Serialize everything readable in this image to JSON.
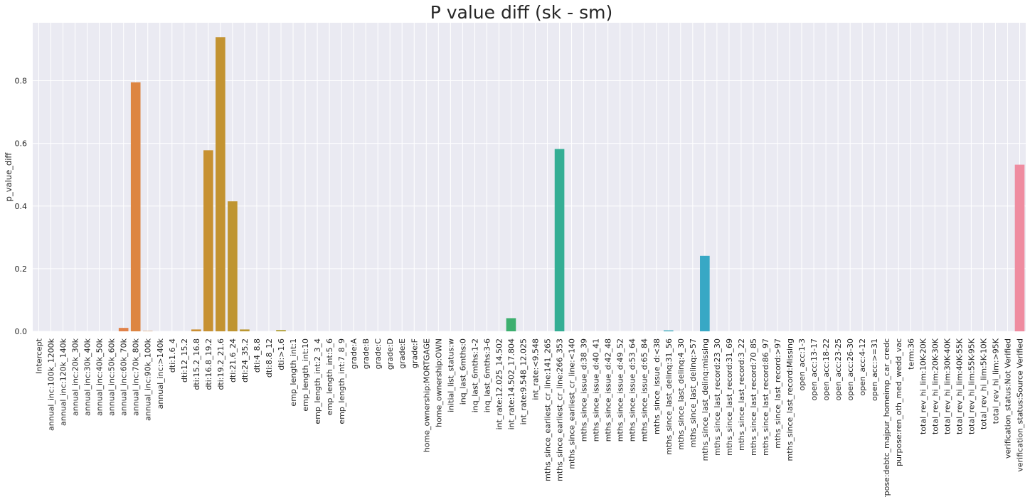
{
  "chart_data": {
    "type": "bar",
    "title": "P value diff (sk - sm)",
    "xlabel": "",
    "ylabel": "p_value_diff",
    "ylim": [
      0,
      0.985
    ],
    "yticks": [
      0.0,
      0.2,
      0.4,
      0.6,
      0.8
    ],
    "ytick_labels": [
      "0.0",
      "0.2",
      "0.4",
      "0.6",
      "0.8"
    ],
    "grid": true,
    "legend": "none",
    "categories": [
      "Intercept",
      "annual_inc:100k_1200k",
      "annual_inc:120k_140k",
      "annual_inc:20k_30k",
      "annual_inc:30k_40k",
      "annual_inc:40k_50k",
      "annual_inc:50k_60k",
      "annual_inc:60k_70k",
      "annual_inc:70k_80k",
      "annual_inc:90k_100k",
      "annual_inc:>140k",
      "dti:1.6_4",
      "dti:12_15.2",
      "dti:15.2_16.8",
      "dti:16.8_19.2",
      "dti:19.2_21.6",
      "dti:21.6_24",
      "dti:24_35.2",
      "dti:4_8.8",
      "dti:8.8_12",
      "dti:>1.6",
      "emp_length_int:1",
      "emp_length_int:10",
      "emp_length_int:2_3_4",
      "emp_length_int:5_6",
      "emp_length_int:7_8_9",
      "grade:A",
      "grade:B",
      "grade:C",
      "grade:D",
      "grade:E",
      "grade:F",
      "home_ownership:MORTGAGE",
      "home_ownership:OWN",
      "initial_list_status:w",
      "inq_last_6mths:0",
      "inq_last_6mths:1-2",
      "inq_last_6mths:3-6",
      "int_rate:12.025_14.502",
      "int_rate:14.502_17.804",
      "int_rate:9.548_12.025",
      "int_rate:<9.548",
      "mths_since_earliest_cr_line:141_265",
      "mths_since_earliest_cr_line:266_353",
      "mths_since_earliest_cr_line:<140",
      "mths_since_issue_d:38_39",
      "mths_since_issue_d:40_41",
      "mths_since_issue_d:42_48",
      "mths_since_issue_d:49_52",
      "mths_since_issue_d:53_64",
      "mths_since_issue_d:65_84",
      "mths_since_issue_d:<38",
      "mths_since_last_delinq:31_56",
      "mths_since_last_delinq:4_30",
      "mths_since_last_delinq:>57",
      "mths_since_last_delinq:missing",
      "mths_since_last_record:23_30",
      "mths_since_last_record:31_69",
      "mths_since_last_record:3_22",
      "mths_since_last_record:70_85",
      "mths_since_last_record:86_97",
      "mths_since_last_record:>97",
      "mths_since_last_record:Missing",
      "open_acc:1-3",
      "open_acc:13-17",
      "open_acc:18-22",
      "open_acc:23-25",
      "open_acc:26-30",
      "open_acc:4-12",
      "open_acc:>=31",
      "purpose:debtc_majpur_homeimp_car_credc",
      "purpose:ren_oth_med_wedd_vac",
      "term:36",
      "total_rev_hi_lim:10K-20K",
      "total_rev_hi_lim:20K-30K",
      "total_rev_hi_lim:30K-40K",
      "total_rev_hi_lim:40K-55K",
      "total_rev_hi_lim:55K-95K",
      "total_rev_hi_lim:5K-10K",
      "total_rev_hi_lim:>95K",
      "verification_status:Not Verified",
      "verification_status:Source Verified"
    ],
    "values": [
      0.0,
      0.0,
      0.0,
      0.0,
      0.0,
      0.0,
      0.0,
      0.011,
      0.795,
      0.001,
      0.0,
      0.0,
      0.0,
      0.006,
      0.578,
      0.939,
      0.415,
      0.006,
      0.0,
      0.0,
      0.004,
      0.0,
      0.0,
      0.0,
      0.0,
      0.0,
      0.0,
      0.0,
      0.0,
      0.0,
      0.0,
      0.0,
      0.0,
      0.0,
      0.0,
      0.0,
      0.0,
      0.0,
      0.0,
      0.042,
      0.0,
      0.0,
      0.0,
      0.582,
      0.0,
      0.0,
      0.0,
      0.0,
      0.0,
      0.0,
      0.0,
      0.0,
      0.003,
      0.0,
      0.0,
      0.241,
      0.0,
      0.0,
      0.0,
      0.0,
      0.0,
      0.0,
      0.0,
      0.0,
      0.0,
      0.0,
      0.0,
      0.0,
      0.0,
      0.0,
      0.0,
      0.0,
      0.0,
      0.0,
      0.0,
      0.0,
      0.0,
      0.0,
      0.0,
      0.0,
      0.0,
      0.532
    ],
    "colors": {
      "background": "#eaeaf2",
      "grid": "#ffffff",
      "text": "#262626",
      "palette_start": "#f77189",
      "palette_note": "seaborn husl palette, one hue per category"
    }
  }
}
